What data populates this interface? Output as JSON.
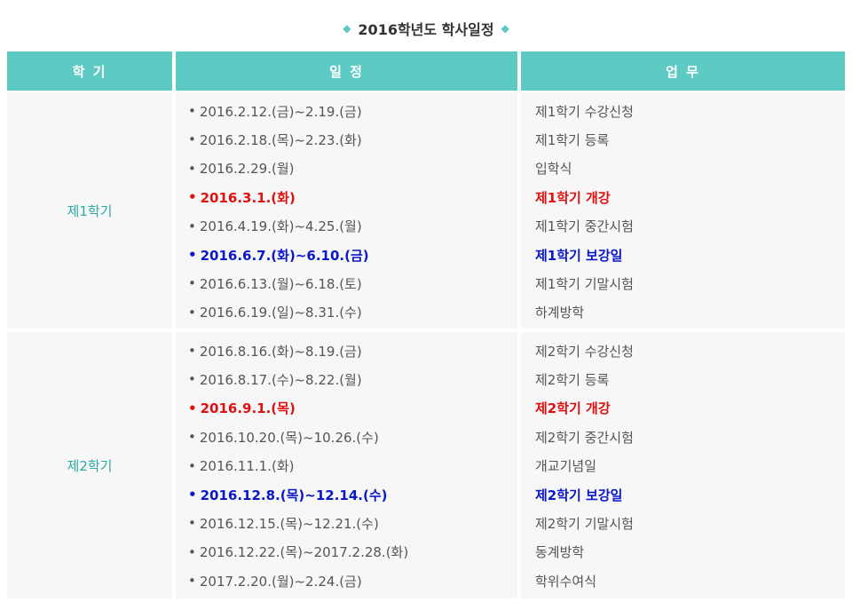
{
  "title": "2016학년도 학사일정",
  "headers": {
    "semester": "학 기",
    "schedule": "일 정",
    "task": "업 무"
  },
  "semesters": [
    {
      "name": "제1학기",
      "rows": [
        {
          "date": "2016.2.12.(금)~2.19.(금)",
          "task": "제1학기 수강신청",
          "style": "normal"
        },
        {
          "date": "2016.2.18.(목)~2.23.(화)",
          "task": "제1학기 등록",
          "style": "normal"
        },
        {
          "date": "2016.2.29.(월)",
          "task": "입학식",
          "style": "normal"
        },
        {
          "date": "2016.3.1.(화)",
          "task": "제1학기 개강",
          "style": "red"
        },
        {
          "date": "2016.4.19.(화)~4.25.(월)",
          "task": "제1학기 중간시험",
          "style": "normal"
        },
        {
          "date": "2016.6.7.(화)~6.10.(금)",
          "task": "제1학기 보강일",
          "style": "blue"
        },
        {
          "date": "2016.6.13.(월)~6.18.(토)",
          "task": "제1학기 기말시험",
          "style": "normal"
        },
        {
          "date": "2016.6.19.(일)~8.31.(수)",
          "task": "하계방학",
          "style": "normal"
        }
      ]
    },
    {
      "name": "제2학기",
      "rows": [
        {
          "date": "2016.8.16.(화)~8.19.(금)",
          "task": "제2학기 수강신청",
          "style": "normal"
        },
        {
          "date": "2016.8.17.(수)~8.22.(월)",
          "task": "제2학기 등록",
          "style": "normal"
        },
        {
          "date": "2016.9.1.(목)",
          "task": "제2학기 개강",
          "style": "red"
        },
        {
          "date": "2016.10.20.(목)~10.26.(수)",
          "task": "제2학기 중간시험",
          "style": "normal"
        },
        {
          "date": "2016.11.1.(화)",
          "task": "개교기념일",
          "style": "normal"
        },
        {
          "date": "2016.12.8.(목)~12.14.(수)",
          "task": "제2학기 보강일",
          "style": "blue"
        },
        {
          "date": "2016.12.15.(목)~12.21.(수)",
          "task": "제2학기 기말시험",
          "style": "normal"
        },
        {
          "date": "2016.12.22.(목)~2017.2.28.(화)",
          "task": "동계방학",
          "style": "normal"
        },
        {
          "date": "2017.2.20.(월)~2.24.(금)",
          "task": "학위수여식",
          "style": "normal"
        }
      ]
    }
  ]
}
